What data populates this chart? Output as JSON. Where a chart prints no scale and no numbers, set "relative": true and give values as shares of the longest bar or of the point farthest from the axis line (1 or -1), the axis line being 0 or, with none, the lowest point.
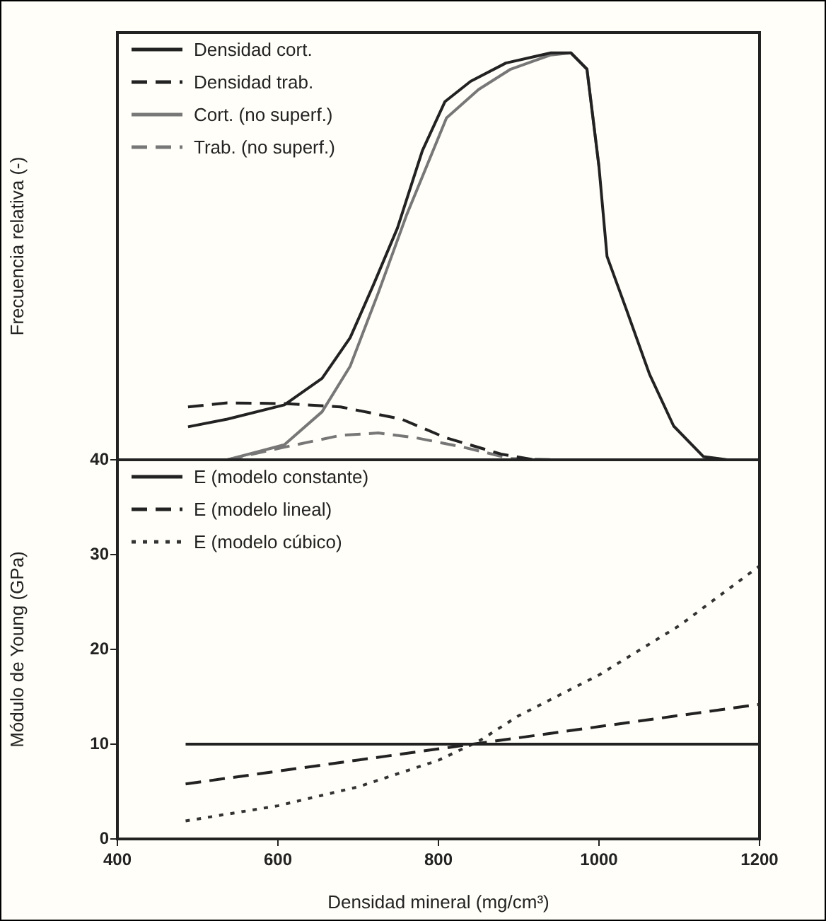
{
  "chart_data": [
    {
      "type": "line",
      "ylabel": "Frecuencia relativa (-)",
      "relative": true,
      "xlim": [
        400,
        1200
      ],
      "tick_labels": false,
      "legend": "top left",
      "grid": false,
      "marker": "none",
      "series": [
        {
          "name": "Densidad cort.",
          "color": "#222222",
          "line_style": "solid",
          "x": [
            488,
            537,
            608,
            655,
            690,
            719,
            749,
            780,
            808,
            840,
            884,
            940,
            965,
            985,
            1000,
            1010,
            1034,
            1063,
            1093,
            1130,
            1160,
            1200
          ],
          "values": [
            0.081,
            0.1,
            0.135,
            0.2,
            0.3,
            0.43,
            0.57,
            0.76,
            0.88,
            0.93,
            0.975,
            1.0,
            1.0,
            0.96,
            0.72,
            0.5,
            0.37,
            0.21,
            0.083,
            0.008,
            0,
            0
          ]
        },
        {
          "name": "Densidad trab.",
          "color": "#222222",
          "line_style": "dashed",
          "x": [
            488,
            537,
            608,
            678,
            754,
            808,
            878,
            920,
            1200
          ],
          "values": [
            0.13,
            0.14,
            0.138,
            0.13,
            0.1,
            0.055,
            0.014,
            0,
            0
          ]
        },
        {
          "name": "Cort. (no superf.)",
          "color": "#777777",
          "line_style": "solid",
          "x": [
            537,
            608,
            655,
            690,
            725,
            760,
            810,
            850,
            890,
            940,
            965,
            985,
            1000
          ],
          "values": [
            0,
            0.037,
            0.118,
            0.23,
            0.41,
            0.6,
            0.84,
            0.91,
            0.96,
            0.995,
            1.0,
            0.96,
            0.72
          ]
        },
        {
          "name": "Trab. (no superf.)",
          "color": "#777777",
          "line_style": "dashed",
          "x": [
            537,
            608,
            678,
            725,
            772,
            831,
            890,
            950
          ],
          "values": [
            0,
            0.031,
            0.06,
            0.066,
            0.054,
            0.031,
            0.003,
            0
          ]
        }
      ]
    },
    {
      "type": "line",
      "xlabel": "Densidad mineral (mg/cm³)",
      "ylabel": "Módulo de Young (GPa)",
      "xlim": [
        400,
        1200
      ],
      "xticks": [
        400,
        600,
        800,
        1000,
        1200
      ],
      "ylim": [
        0,
        40
      ],
      "yticks": [
        0,
        10,
        20,
        30,
        40
      ],
      "legend": "top left",
      "grid": false,
      "marker": "none",
      "series": [
        {
          "name": "E (modelo constante)",
          "color": "#222222",
          "line_style": "solid",
          "x": [
            485,
            1200
          ],
          "values": [
            10,
            10
          ]
        },
        {
          "name": "E (modelo lineal)",
          "color": "#222222",
          "line_style": "dashed",
          "x": [
            485,
            1200
          ],
          "values": [
            5.8,
            14.2
          ]
        },
        {
          "name": "E (modelo cúbico)",
          "color": "#333333",
          "line_style": "dotted",
          "x": [
            485,
            600,
            700,
            800,
            850,
            900,
            1000,
            1100,
            1200
          ],
          "values": [
            1.9,
            3.5,
            5.5,
            8.3,
            10.3,
            13,
            17.3,
            22.5,
            28.8
          ]
        }
      ]
    }
  ]
}
